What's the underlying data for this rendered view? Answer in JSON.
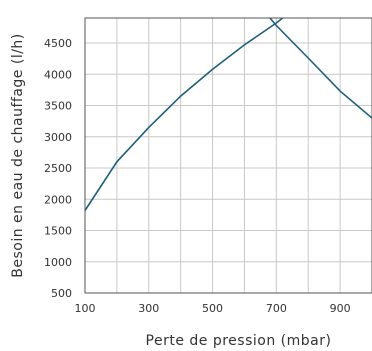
{
  "chart_data": {
    "type": "line",
    "title": "",
    "xlabel": "Perte de pression (mbar)",
    "ylabel": "Besoin en eau de chauffage  (l/h)",
    "xlim": [
      100,
      1000
    ],
    "ylim": [
      500,
      4900
    ],
    "xticks": [
      100,
      300,
      500,
      700,
      900
    ],
    "xticks_minor": [
      200,
      400,
      600,
      800
    ],
    "yticks": [
      500,
      1000,
      1500,
      2000,
      2500,
      3000,
      3500,
      4000,
      4500
    ],
    "grid": true,
    "legend": "none",
    "series": [
      {
        "color": "#1f5f7a",
        "x": [
          100,
          200,
          300,
          400,
          500,
          600,
          700,
          720
        ],
        "y": [
          1820,
          2600,
          3150,
          3650,
          4080,
          4470,
          4820,
          4900
        ]
      },
      {
        "color": "#1f5f7a",
        "x": [
          680,
          700,
          800,
          900,
          1000
        ],
        "y": [
          4900,
          4780,
          4260,
          3730,
          3300
        ]
      }
    ]
  }
}
